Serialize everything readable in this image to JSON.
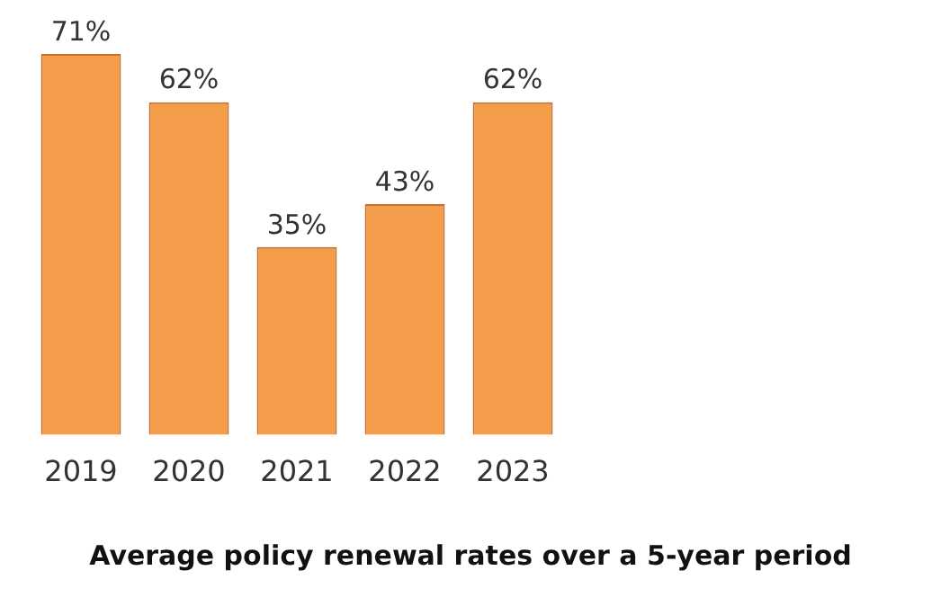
{
  "chart_data": {
    "type": "bar",
    "title": "Average policy renewal rates over a 5-year period",
    "categories": [
      "2019",
      "2020",
      "2021",
      "2022",
      "2023"
    ],
    "values": [
      71,
      62,
      35,
      43,
      62
    ],
    "value_labels": [
      "71%",
      "62%",
      "35%",
      "43%",
      "62%"
    ],
    "color": "#f39c4a",
    "grid": false,
    "legend": false
  }
}
